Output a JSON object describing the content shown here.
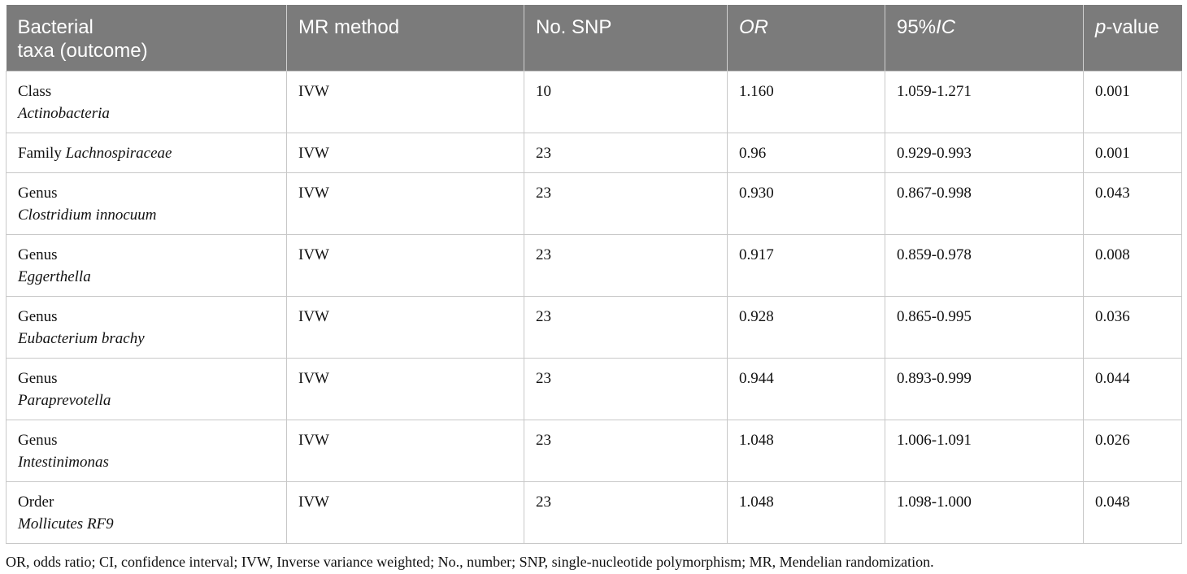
{
  "table": {
    "headers": [
      {
        "pre": "Bacterial",
        "line2": "taxa (outcome)",
        "italic": "",
        "post": ""
      },
      {
        "pre": "MR method",
        "line2": "",
        "italic": "",
        "post": ""
      },
      {
        "pre": "No. SNP",
        "line2": "",
        "italic": "",
        "post": ""
      },
      {
        "pre": "",
        "line2": "",
        "italic": "OR",
        "post": ""
      },
      {
        "pre": "95%",
        "line2": "",
        "italic": "IC",
        "post": ""
      },
      {
        "pre": "",
        "line2": "",
        "italic": "p",
        "post": "-value"
      }
    ],
    "rows": [
      {
        "rank": "Class",
        "taxon": "Actinobacteria",
        "inline": false,
        "method": "IVW",
        "snp": "10",
        "or": "1.160",
        "ci": "1.059-1.271",
        "p": "0.001"
      },
      {
        "rank": "Family",
        "taxon": "Lachnospiraceae",
        "inline": true,
        "method": "IVW",
        "snp": "23",
        "or": "0.96",
        "ci": "0.929-0.993",
        "p": "0.001"
      },
      {
        "rank": "Genus",
        "taxon": "Clostridium innocuum",
        "inline": false,
        "method": "IVW",
        "snp": "23",
        "or": "0.930",
        "ci": "0.867-0.998",
        "p": "0.043"
      },
      {
        "rank": "Genus",
        "taxon": "Eggerthella",
        "inline": false,
        "method": "IVW",
        "snp": "23",
        "or": "0.917",
        "ci": "0.859-0.978",
        "p": "0.008"
      },
      {
        "rank": "Genus",
        "taxon": "Eubacterium brachy",
        "inline": false,
        "method": "IVW",
        "snp": "23",
        "or": "0.928",
        "ci": "0.865-0.995",
        "p": "0.036"
      },
      {
        "rank": "Genus",
        "taxon": "Paraprevotella",
        "inline": false,
        "method": "IVW",
        "snp": "23",
        "or": "0.944",
        "ci": "0.893-0.999",
        "p": "0.044"
      },
      {
        "rank": "Genus",
        "taxon": "Intestinimonas",
        "inline": false,
        "method": "IVW",
        "snp": "23",
        "or": "1.048",
        "ci": "1.006-1.091",
        "p": "0.026"
      },
      {
        "rank": "Order",
        "taxon": "Mollicutes RF9",
        "inline": false,
        "method": "IVW",
        "snp": "23",
        "or": "1.048",
        "ci": "1.098-1.000",
        "p": "0.048"
      }
    ]
  },
  "footnote": "OR, odds ratio; CI, confidence interval; IVW, Inverse variance weighted; No., number; SNP, single-nucleotide polymorphism; MR, Mendelian randomization."
}
